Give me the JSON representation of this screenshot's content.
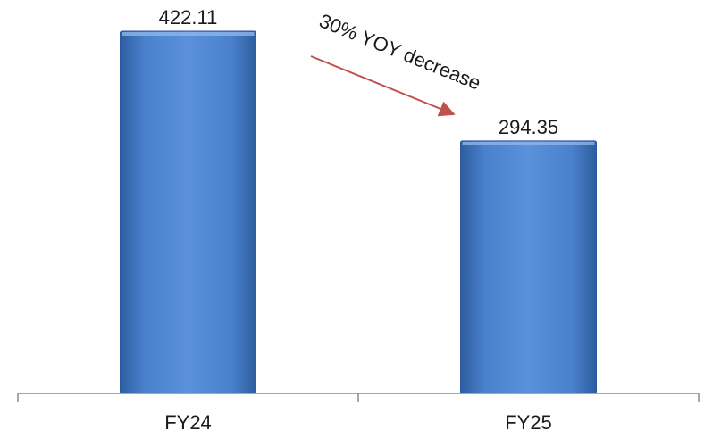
{
  "chart_data": {
    "type": "bar",
    "categories": [
      "FY24",
      "FY25"
    ],
    "values": [
      422.11,
      294.35
    ],
    "data_labels": [
      "422.11",
      "294.35"
    ],
    "annotation": "30% YOY decrease",
    "ylim": [
      0,
      422.11
    ],
    "grid": false,
    "legend": "none",
    "colors": {
      "bar": "#4a7fc8",
      "bar_dark": "#2c5aa0",
      "axis": "#8a8a8a",
      "arrow": "#c0504d"
    }
  }
}
